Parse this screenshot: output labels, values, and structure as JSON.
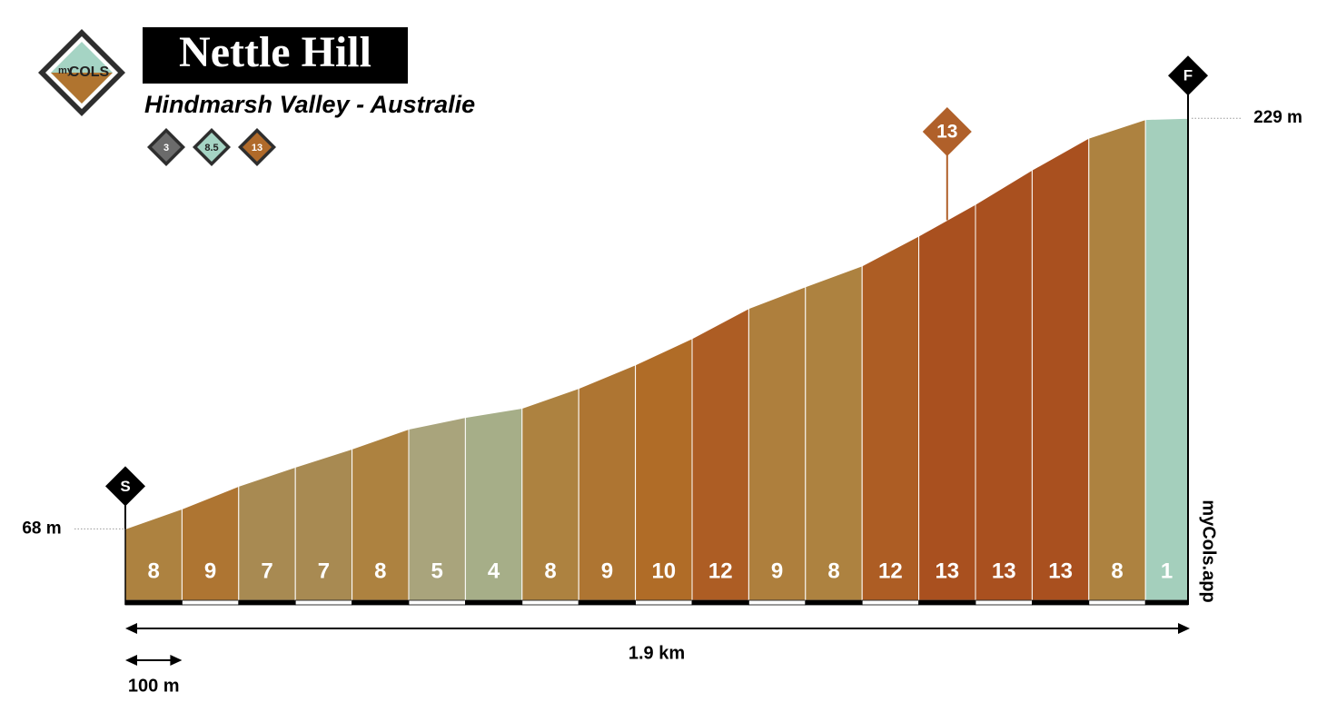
{
  "chart_data": {
    "type": "area",
    "logo": {
      "top": "my",
      "main": "COLS"
    },
    "title": "Nettle Hill",
    "subtitle": "Hindmarsh Valley - Australie",
    "legend": {
      "values": [
        3,
        8.5,
        13
      ],
      "colors": [
        "#6b6b6b",
        "#a5d4c4",
        "#b06a2a"
      ]
    },
    "x": [
      0,
      100,
      200,
      300,
      400,
      500,
      600,
      700,
      800,
      900,
      1000,
      1100,
      1200,
      1300,
      1400,
      1500,
      1600,
      1700,
      1800,
      1875
    ],
    "values": [
      68,
      75.8,
      84.7,
      92.2,
      99.3,
      107.1,
      111.7,
      115.3,
      123.1,
      132.3,
      142.6,
      154.4,
      162.9,
      171.1,
      182.8,
      195.2,
      208.7,
      221.2,
      228.5,
      229
    ],
    "gradients": [
      8,
      9,
      7,
      7,
      8,
      5,
      4,
      8,
      9,
      10,
      12,
      9,
      8,
      12,
      13,
      13,
      13,
      8,
      1
    ],
    "segment_colors": [
      "#ad8240",
      "#ae7532",
      "#a88a52",
      "#a88a52",
      "#ad8240",
      "#a9a47c",
      "#a6ae88",
      "#ad8240",
      "#ae7532",
      "#b06c27",
      "#ad5d24",
      "#ae7f3d",
      "#ad8240",
      "#ad5d24",
      "#a9501f",
      "#a9501f",
      "#a9501f",
      "#ad8240",
      "#a4cfbc"
    ],
    "xlim": [
      0,
      1875
    ],
    "ylim": [
      40,
      275
    ],
    "start_label": "S",
    "finish_label": "F",
    "elevation_labels": [
      {
        "value": 68,
        "label": "68 m"
      },
      {
        "value": 229,
        "label": "229 m"
      }
    ],
    "max_gradient": {
      "value": 13,
      "x": 1450,
      "color": "#b0602a"
    },
    "distance_label": "1.9 km",
    "scale": {
      "value": 100,
      "label": "100 m"
    },
    "watermark": "myCols.app"
  }
}
